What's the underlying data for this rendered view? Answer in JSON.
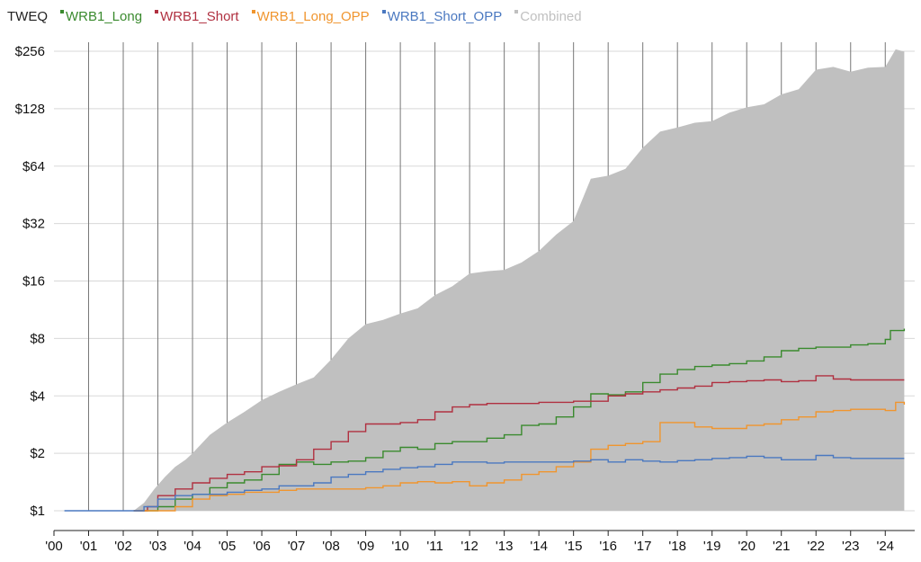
{
  "legend_title": "TWEQ",
  "chart_data": {
    "type": "line",
    "ylabel": "",
    "xlabel": "",
    "y_scale": "log2",
    "ylim": [
      1,
      280
    ],
    "xlim": [
      2000,
      2024.6
    ],
    "y_ticks": [
      {
        "value": 1,
        "label": "$1"
      },
      {
        "value": 2,
        "label": "$2"
      },
      {
        "value": 4,
        "label": "$4"
      },
      {
        "value": 8,
        "label": "$8"
      },
      {
        "value": 16,
        "label": "$16"
      },
      {
        "value": 32,
        "label": "$32"
      },
      {
        "value": 64,
        "label": "$64"
      },
      {
        "value": 128,
        "label": "$128"
      },
      {
        "value": 256,
        "label": "$256"
      }
    ],
    "x_ticks": [
      {
        "value": 2000,
        "label": "'00"
      },
      {
        "value": 2001,
        "label": "'01"
      },
      {
        "value": 2002,
        "label": "'02"
      },
      {
        "value": 2003,
        "label": "'03"
      },
      {
        "value": 2004,
        "label": "'04"
      },
      {
        "value": 2005,
        "label": "'05"
      },
      {
        "value": 2006,
        "label": "'06"
      },
      {
        "value": 2007,
        "label": "'07"
      },
      {
        "value": 2008,
        "label": "'08"
      },
      {
        "value": 2009,
        "label": "'09"
      },
      {
        "value": 2010,
        "label": "'10"
      },
      {
        "value": 2011,
        "label": "'11"
      },
      {
        "value": 2012,
        "label": "'12"
      },
      {
        "value": 2013,
        "label": "'13"
      },
      {
        "value": 2014,
        "label": "'14"
      },
      {
        "value": 2015,
        "label": "'15"
      },
      {
        "value": 2016,
        "label": "'16"
      },
      {
        "value": 2017,
        "label": "'17"
      },
      {
        "value": 2018,
        "label": "'18"
      },
      {
        "value": 2019,
        "label": "'19"
      },
      {
        "value": 2020,
        "label": "'20"
      },
      {
        "value": 2021,
        "label": "'21"
      },
      {
        "value": 2022,
        "label": "'22"
      },
      {
        "value": 2023,
        "label": "'23"
      },
      {
        "value": 2024,
        "label": "'24"
      }
    ],
    "grid": {
      "horizontal": true,
      "vertical": true
    },
    "legend_position": "top-left",
    "series": [
      {
        "name": "Combined",
        "kind": "area",
        "color": "#c0c0c0",
        "points": [
          [
            2002.3,
            1.0
          ],
          [
            2002.6,
            1.1
          ],
          [
            2002.9,
            1.3
          ],
          [
            2003.2,
            1.5
          ],
          [
            2003.5,
            1.7
          ],
          [
            2003.8,
            1.85
          ],
          [
            2004.0,
            2.0
          ],
          [
            2004.5,
            2.5
          ],
          [
            2005.0,
            2.9
          ],
          [
            2005.5,
            3.3
          ],
          [
            2006.0,
            3.8
          ],
          [
            2006.5,
            4.2
          ],
          [
            2007.0,
            4.6
          ],
          [
            2007.5,
            5.0
          ],
          [
            2008.0,
            6.2
          ],
          [
            2008.5,
            8.0
          ],
          [
            2009.0,
            9.5
          ],
          [
            2009.5,
            10.0
          ],
          [
            2010.0,
            10.8
          ],
          [
            2010.5,
            11.5
          ],
          [
            2011.0,
            13.5
          ],
          [
            2011.5,
            15.0
          ],
          [
            2012.0,
            17.5
          ],
          [
            2012.5,
            18.0
          ],
          [
            2013.0,
            18.3
          ],
          [
            2013.5,
            20.0
          ],
          [
            2014.0,
            23.0
          ],
          [
            2014.5,
            28.0
          ],
          [
            2015.0,
            33.0
          ],
          [
            2015.5,
            55.0
          ],
          [
            2016.0,
            57.0
          ],
          [
            2016.5,
            62.0
          ],
          [
            2017.0,
            80.0
          ],
          [
            2017.5,
            97.0
          ],
          [
            2018.0,
            102.0
          ],
          [
            2018.5,
            108.0
          ],
          [
            2019.0,
            110.0
          ],
          [
            2019.5,
            122.0
          ],
          [
            2020.0,
            130.0
          ],
          [
            2020.5,
            135.0
          ],
          [
            2021.0,
            152.0
          ],
          [
            2021.5,
            162.0
          ],
          [
            2022.0,
            205.0
          ],
          [
            2022.5,
            212.0
          ],
          [
            2023.0,
            200.0
          ],
          [
            2023.5,
            210.0
          ],
          [
            2024.0,
            212.0
          ],
          [
            2024.3,
            262.0
          ],
          [
            2024.55,
            255.0
          ]
        ]
      },
      {
        "name": "WRB1_Long",
        "kind": "line",
        "color": "#3a8a2e",
        "points": [
          [
            2002.3,
            1.0
          ],
          [
            2003.0,
            1.05
          ],
          [
            2003.5,
            1.15
          ],
          [
            2004.0,
            1.22
          ],
          [
            2004.5,
            1.32
          ],
          [
            2005.0,
            1.4
          ],
          [
            2005.5,
            1.45
          ],
          [
            2006.0,
            1.55
          ],
          [
            2006.5,
            1.75
          ],
          [
            2007.0,
            1.8
          ],
          [
            2007.5,
            1.75
          ],
          [
            2008.0,
            1.8
          ],
          [
            2008.5,
            1.82
          ],
          [
            2009.0,
            1.9
          ],
          [
            2009.5,
            2.05
          ],
          [
            2010.0,
            2.15
          ],
          [
            2010.5,
            2.1
          ],
          [
            2011.0,
            2.25
          ],
          [
            2011.5,
            2.3
          ],
          [
            2012.0,
            2.3
          ],
          [
            2012.5,
            2.4
          ],
          [
            2013.0,
            2.5
          ],
          [
            2013.5,
            2.8
          ],
          [
            2014.0,
            2.85
          ],
          [
            2014.5,
            3.1
          ],
          [
            2015.0,
            3.5
          ],
          [
            2015.5,
            4.1
          ],
          [
            2016.0,
            4.05
          ],
          [
            2016.5,
            4.2
          ],
          [
            2017.0,
            4.7
          ],
          [
            2017.5,
            5.2
          ],
          [
            2018.0,
            5.5
          ],
          [
            2018.5,
            5.7
          ],
          [
            2019.0,
            5.8
          ],
          [
            2019.5,
            5.9
          ],
          [
            2020.0,
            6.1
          ],
          [
            2020.5,
            6.4
          ],
          [
            2021.0,
            6.9
          ],
          [
            2021.5,
            7.1
          ],
          [
            2022.0,
            7.2
          ],
          [
            2022.5,
            7.2
          ],
          [
            2023.0,
            7.4
          ],
          [
            2023.5,
            7.5
          ],
          [
            2024.0,
            7.9
          ],
          [
            2024.15,
            8.8
          ],
          [
            2024.55,
            9.0
          ]
        ]
      },
      {
        "name": "WRB1_Short",
        "kind": "line",
        "color": "#b03040",
        "points": [
          [
            2002.3,
            1.0
          ],
          [
            2002.7,
            1.05
          ],
          [
            2003.0,
            1.2
          ],
          [
            2003.5,
            1.3
          ],
          [
            2004.0,
            1.4
          ],
          [
            2004.5,
            1.48
          ],
          [
            2005.0,
            1.55
          ],
          [
            2005.5,
            1.6
          ],
          [
            2006.0,
            1.7
          ],
          [
            2006.5,
            1.72
          ],
          [
            2007.0,
            1.85
          ],
          [
            2007.5,
            2.1
          ],
          [
            2008.0,
            2.3
          ],
          [
            2008.5,
            2.6
          ],
          [
            2009.0,
            2.85
          ],
          [
            2009.5,
            2.85
          ],
          [
            2010.0,
            2.9
          ],
          [
            2010.5,
            3.0
          ],
          [
            2011.0,
            3.3
          ],
          [
            2011.5,
            3.5
          ],
          [
            2012.0,
            3.6
          ],
          [
            2012.5,
            3.65
          ],
          [
            2013.0,
            3.65
          ],
          [
            2014.0,
            3.7
          ],
          [
            2015.0,
            3.75
          ],
          [
            2016.0,
            4.0
          ],
          [
            2016.5,
            4.1
          ],
          [
            2017.0,
            4.2
          ],
          [
            2017.5,
            4.3
          ],
          [
            2018.0,
            4.4
          ],
          [
            2018.5,
            4.5
          ],
          [
            2019.0,
            4.7
          ],
          [
            2019.5,
            4.75
          ],
          [
            2020.0,
            4.8
          ],
          [
            2020.5,
            4.85
          ],
          [
            2021.0,
            4.75
          ],
          [
            2021.5,
            4.8
          ],
          [
            2022.0,
            5.1
          ],
          [
            2022.5,
            4.9
          ],
          [
            2023.0,
            4.85
          ],
          [
            2024.55,
            4.85
          ]
        ]
      },
      {
        "name": "WRB1_Long_OPP",
        "kind": "line",
        "color": "#f0952e",
        "points": [
          [
            2002.3,
            1.0
          ],
          [
            2003.0,
            1.0
          ],
          [
            2003.5,
            1.05
          ],
          [
            2004.0,
            1.15
          ],
          [
            2004.5,
            1.2
          ],
          [
            2005.0,
            1.22
          ],
          [
            2005.5,
            1.25
          ],
          [
            2006.0,
            1.25
          ],
          [
            2006.5,
            1.28
          ],
          [
            2007.0,
            1.3
          ],
          [
            2007.5,
            1.3
          ],
          [
            2008.0,
            1.3
          ],
          [
            2008.5,
            1.3
          ],
          [
            2009.0,
            1.32
          ],
          [
            2009.5,
            1.35
          ],
          [
            2010.0,
            1.4
          ],
          [
            2010.5,
            1.42
          ],
          [
            2011.0,
            1.4
          ],
          [
            2011.5,
            1.42
          ],
          [
            2012.0,
            1.35
          ],
          [
            2012.5,
            1.4
          ],
          [
            2013.0,
            1.45
          ],
          [
            2013.5,
            1.55
          ],
          [
            2014.0,
            1.6
          ],
          [
            2014.5,
            1.7
          ],
          [
            2015.0,
            1.8
          ],
          [
            2015.5,
            2.1
          ],
          [
            2016.0,
            2.2
          ],
          [
            2016.5,
            2.25
          ],
          [
            2017.0,
            2.3
          ],
          [
            2017.5,
            2.9
          ],
          [
            2018.0,
            2.9
          ],
          [
            2018.5,
            2.75
          ],
          [
            2019.0,
            2.7
          ],
          [
            2019.5,
            2.7
          ],
          [
            2020.0,
            2.8
          ],
          [
            2020.5,
            2.85
          ],
          [
            2021.0,
            3.0
          ],
          [
            2021.5,
            3.1
          ],
          [
            2022.0,
            3.3
          ],
          [
            2022.5,
            3.35
          ],
          [
            2023.0,
            3.4
          ],
          [
            2023.5,
            3.4
          ],
          [
            2024.0,
            3.35
          ],
          [
            2024.3,
            3.7
          ],
          [
            2024.55,
            3.6
          ]
        ]
      },
      {
        "name": "WRB1_Short_OPP",
        "kind": "line",
        "color": "#4a78c0",
        "points": [
          [
            2000.3,
            1.0
          ],
          [
            2002.3,
            1.0
          ],
          [
            2002.6,
            1.05
          ],
          [
            2003.0,
            1.15
          ],
          [
            2003.5,
            1.2
          ],
          [
            2004.0,
            1.22
          ],
          [
            2004.5,
            1.22
          ],
          [
            2005.0,
            1.25
          ],
          [
            2005.5,
            1.28
          ],
          [
            2006.0,
            1.3
          ],
          [
            2006.5,
            1.35
          ],
          [
            2007.0,
            1.35
          ],
          [
            2007.5,
            1.4
          ],
          [
            2008.0,
            1.5
          ],
          [
            2008.5,
            1.55
          ],
          [
            2009.0,
            1.6
          ],
          [
            2009.5,
            1.65
          ],
          [
            2010.0,
            1.68
          ],
          [
            2010.5,
            1.7
          ],
          [
            2011.0,
            1.75
          ],
          [
            2011.5,
            1.8
          ],
          [
            2012.0,
            1.8
          ],
          [
            2012.5,
            1.78
          ],
          [
            2013.0,
            1.8
          ],
          [
            2014.0,
            1.8
          ],
          [
            2015.0,
            1.82
          ],
          [
            2015.5,
            1.85
          ],
          [
            2016.0,
            1.8
          ],
          [
            2016.5,
            1.85
          ],
          [
            2017.0,
            1.82
          ],
          [
            2017.5,
            1.8
          ],
          [
            2018.0,
            1.83
          ],
          [
            2018.5,
            1.85
          ],
          [
            2019.0,
            1.88
          ],
          [
            2019.5,
            1.9
          ],
          [
            2020.0,
            1.93
          ],
          [
            2020.5,
            1.9
          ],
          [
            2021.0,
            1.85
          ],
          [
            2021.5,
            1.85
          ],
          [
            2022.0,
            1.95
          ],
          [
            2022.5,
            1.9
          ],
          [
            2023.0,
            1.88
          ],
          [
            2024.55,
            1.88
          ]
        ]
      }
    ]
  }
}
